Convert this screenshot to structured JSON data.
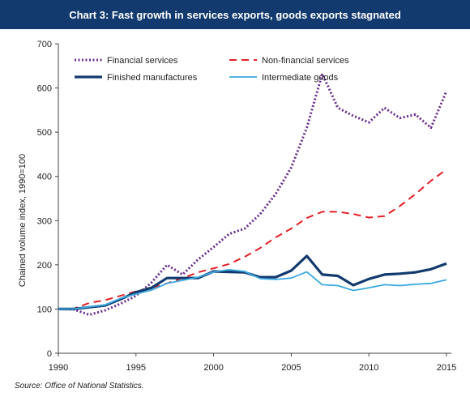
{
  "title": "Chart 3: Fast growth in services exports, goods exports stagnated",
  "source": "Source: Office of National Statistics.",
  "chart_data": {
    "type": "line",
    "ylabel": "Chained volume index, 1990=100",
    "xlim": [
      1990,
      2015
    ],
    "ylim": [
      0,
      700
    ],
    "x_ticks": [
      1990,
      1995,
      2000,
      2005,
      2010,
      2015
    ],
    "y_ticks": [
      0,
      100,
      200,
      300,
      400,
      500,
      600,
      700
    ],
    "legend": "top-left",
    "grid": false,
    "x": [
      1990,
      1991,
      1992,
      1993,
      1994,
      1995,
      1996,
      1997,
      1998,
      1999,
      2000,
      2001,
      2002,
      2003,
      2004,
      2005,
      2006,
      2007,
      2008,
      2009,
      2010,
      2011,
      2012,
      2013,
      2014,
      2015
    ],
    "series": [
      {
        "name": "Financial services",
        "style": "dotted",
        "color": "#6a2c91",
        "values": [
          100,
          99,
          87,
          97,
          112,
          130,
          160,
          200,
          178,
          212,
          240,
          270,
          282,
          315,
          360,
          420,
          510,
          632,
          555,
          537,
          522,
          555,
          532,
          540,
          510,
          593
        ]
      },
      {
        "name": "Non-financial services",
        "style": "dashed",
        "color": "#e21f26",
        "values": [
          100,
          101,
          114,
          120,
          130,
          140,
          148,
          158,
          170,
          183,
          192,
          202,
          218,
          238,
          262,
          282,
          306,
          320,
          320,
          315,
          307,
          310,
          333,
          360,
          390,
          416
        ]
      },
      {
        "name": "Finished manufactures",
        "style": "solid-thick",
        "color": "#123a6e",
        "values": [
          100,
          100,
          104,
          108,
          122,
          138,
          148,
          170,
          170,
          170,
          185,
          184,
          183,
          172,
          172,
          187,
          220,
          178,
          175,
          154,
          168,
          178,
          180,
          183,
          190,
          203
        ]
      },
      {
        "name": "Intermediate goods",
        "style": "solid",
        "color": "#39a9e0",
        "values": [
          100,
          100,
          105,
          109,
          124,
          134,
          143,
          158,
          165,
          172,
          184,
          189,
          185,
          169,
          167,
          170,
          184,
          155,
          153,
          142,
          148,
          155,
          153,
          156,
          158,
          166
        ]
      }
    ]
  }
}
